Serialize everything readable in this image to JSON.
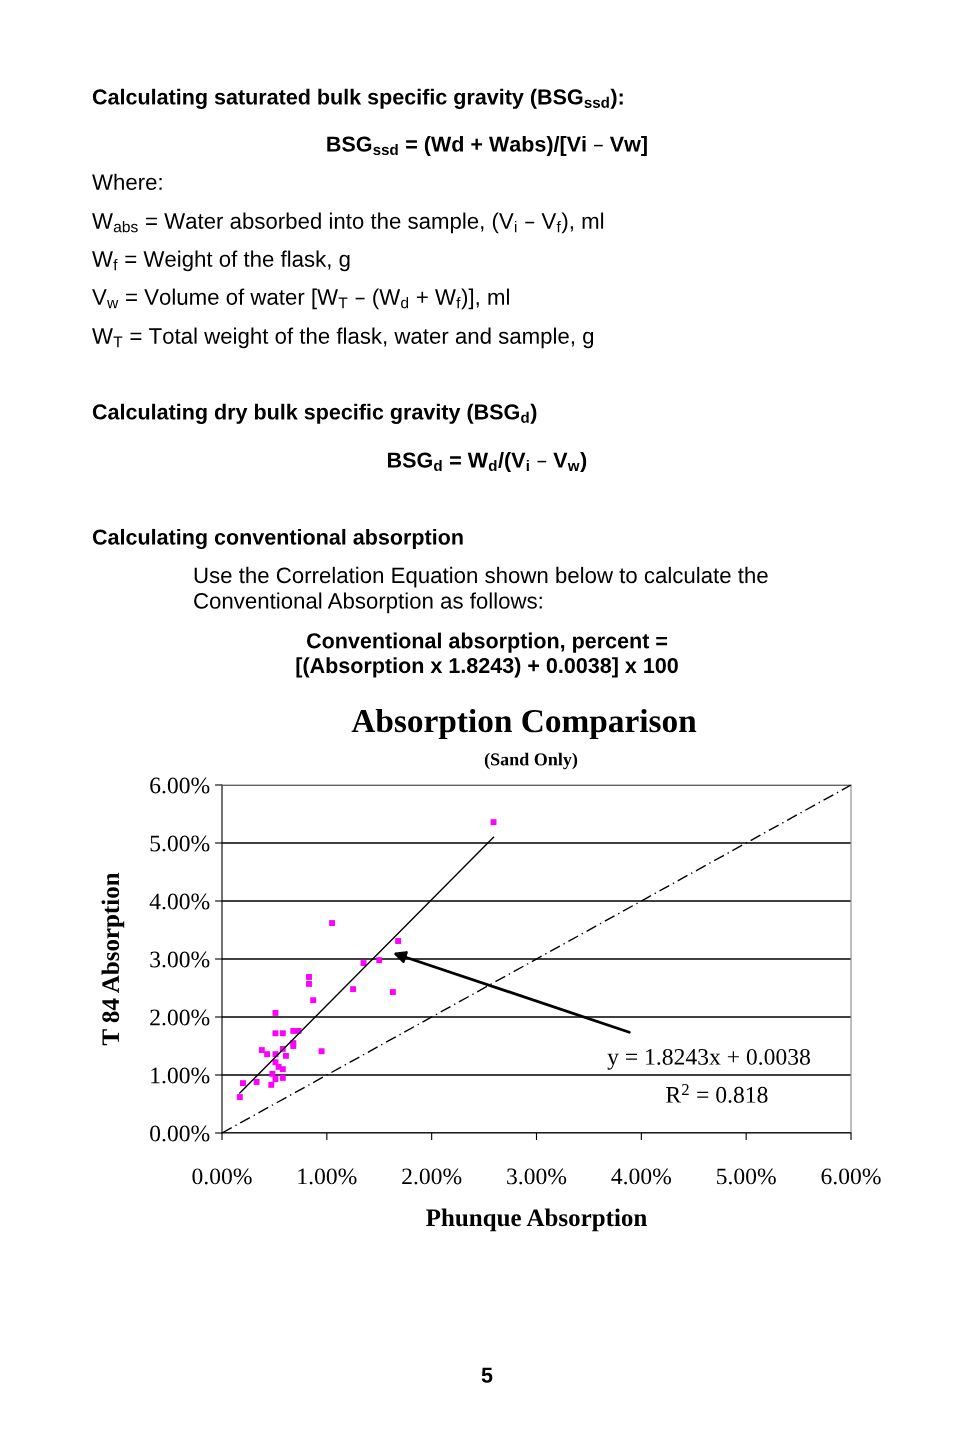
{
  "chart_data": {
    "type": "scatter",
    "title": "Absorption Comparison",
    "subtitle": "(Sand Only)",
    "xlabel": "Phunque Absorption",
    "ylabel": "T 84 Absorption",
    "xlim": [
      0,
      6
    ],
    "ylim": [
      0,
      6
    ],
    "xticks": [
      {
        "value": 0,
        "label": "0.00%"
      },
      {
        "value": 1,
        "label": "1.00%"
      },
      {
        "value": 2,
        "label": "2.00%"
      },
      {
        "value": 3,
        "label": "3.00%"
      },
      {
        "value": 4,
        "label": "4.00%"
      },
      {
        "value": 5,
        "label": "5.00%"
      },
      {
        "value": 6,
        "label": "6.00%"
      }
    ],
    "yticks": [
      {
        "value": 0,
        "label": "0.00%"
      },
      {
        "value": 1,
        "label": "1.00%"
      },
      {
        "value": 2,
        "label": "2.00%"
      },
      {
        "value": 3,
        "label": "3.00%"
      },
      {
        "value": 4,
        "label": "4.00%"
      },
      {
        "value": 5,
        "label": "5.00%"
      },
      {
        "value": 6,
        "label": "6.00%"
      }
    ],
    "grid": "y",
    "legend": false,
    "marker": "square",
    "series": [
      {
        "color": "#ff00ff",
        "x": [
          2.59,
          1.05,
          1.68,
          1.35,
          1.5,
          0.83,
          0.83,
          1.25,
          1.63,
          0.87,
          0.51,
          0.51,
          0.58,
          0.68,
          0.73,
          0.68,
          0.68,
          0.58,
          0.38,
          0.43,
          0.51,
          0.61,
          0.95,
          0.51,
          0.54,
          0.58,
          0.48,
          0.51,
          0.58,
          0.47,
          0.33,
          0.2,
          0.17
        ],
        "values": [
          5.36,
          3.62,
          3.31,
          2.93,
          2.98,
          2.69,
          2.57,
          2.48,
          2.43,
          2.29,
          2.07,
          1.72,
          1.72,
          1.76,
          1.76,
          1.55,
          1.5,
          1.45,
          1.43,
          1.36,
          1.36,
          1.33,
          1.41,
          1.22,
          1.14,
          1.1,
          1.02,
          0.93,
          0.95,
          0.83,
          0.88,
          0.86,
          0.62
        ]
      },
      {
        "type": "line",
        "color": "#000000",
        "marker": "none",
        "line_style": "solid",
        "x": [
          0.17,
          2.59
        ],
        "values": [
          0.69,
          5.1
        ]
      },
      {
        "type": "line",
        "color": "#000000",
        "marker": "none",
        "line_style": "dashed",
        "x": [
          0,
          6
        ],
        "values": [
          0,
          6
        ]
      }
    ],
    "annotations": [
      "y = 1.8243x + 0.0038",
      "R$^{2}$ = 0.818",
      "Calculating saturated bulk specific gravity (BSG$_{ssd}$):",
      "BSG$_{ssd}$ = (Wd + Wabs)/[Vi – Vw]",
      "Where:",
      "W$_{abs}$ = Water absorbed into the sample, (V$_{i}$ – V$_{f}$), ml",
      "W$_{f}$ = Weight of the flask, g",
      "V$_{w}$ = Volume of water [W$_{T}$ – (W$_{d}$ + W$_{f}$)], ml",
      "W$_{T}$ = Total weight of the flask, water and sample, g",
      "Calculating dry bulk specific gravity (BSG$_{d}$)",
      "BSG$_{d}$ = W$_{d}$/(V$_{i}$ – V$_{w}$)",
      "Calculating conventional absorption",
      "Use the Correlation Equation shown below to calculate the\nConventional Absorption as follows:",
      "Conventional absorption, percent =\n[(Absorption x 1.8243) + 0.0038] x 100",
      "5"
    ]
  }
}
